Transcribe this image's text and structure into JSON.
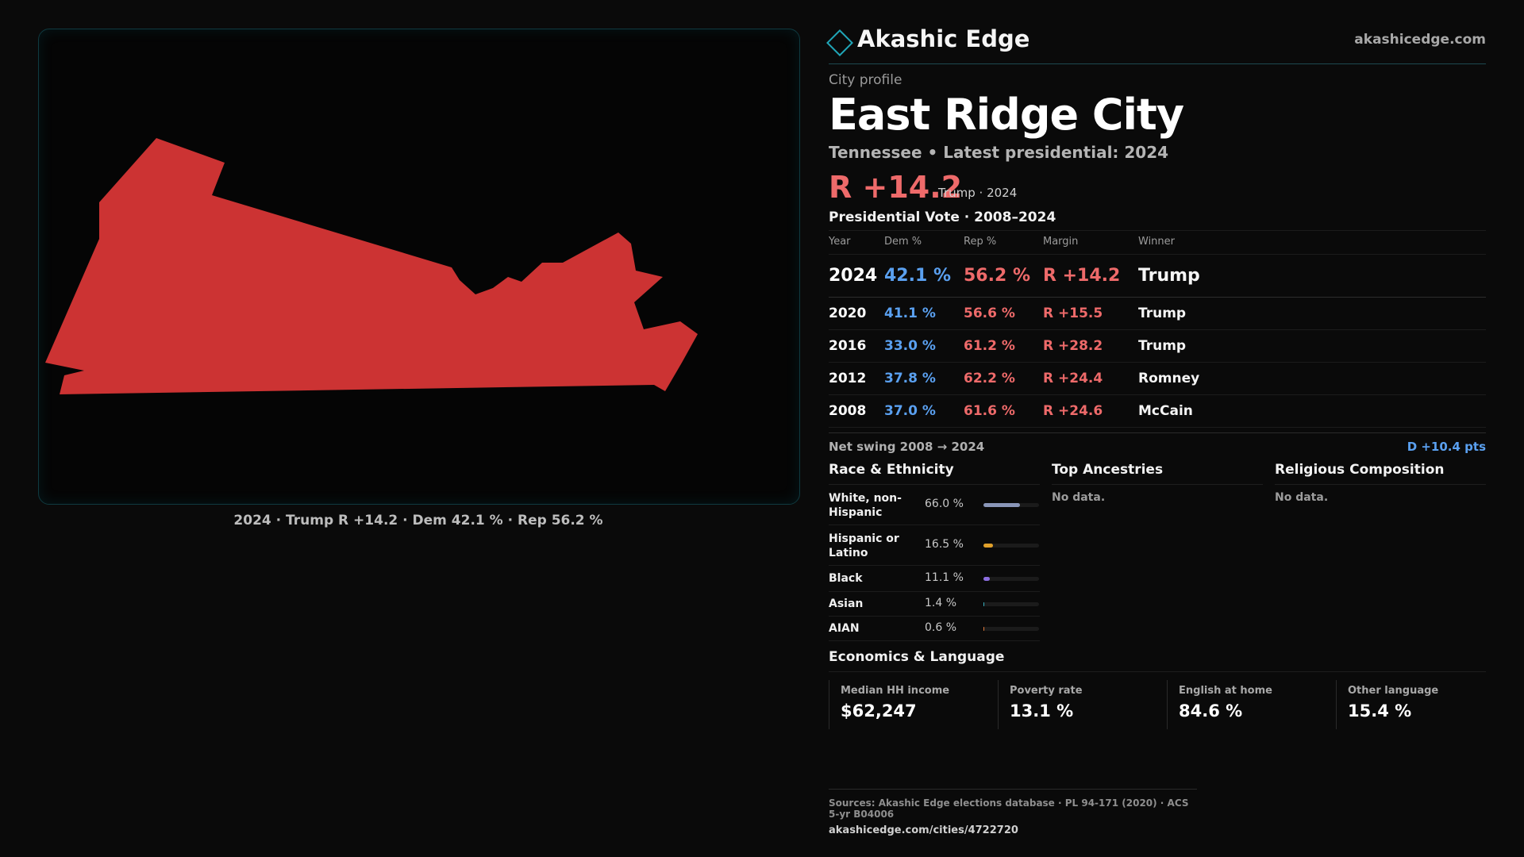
{
  "brand": {
    "name": "Akashic Edge",
    "url": "akashicedge.com"
  },
  "map": {
    "caption": "2024 · Trump R +14.2 · Dem 42.1 % · Rep 56.2 %",
    "fill_color": "#cc3333"
  },
  "profile": {
    "eyebrow": "City profile",
    "city": "East Ridge City",
    "subline": "Tennessee • Latest presidential: 2024",
    "headline_margin": "R +14.2",
    "headline_note": "Trump · 2024"
  },
  "vote_table": {
    "title": "Presidential Vote · 2008–2024",
    "headers": {
      "year": "Year",
      "dem": "Dem %",
      "rep": "Rep %",
      "margin": "Margin",
      "winner": "Winner"
    },
    "rows": [
      {
        "year": "2024",
        "dem": "42.1 %",
        "rep": "56.2 %",
        "margin": "R +14.2",
        "winner": "Trump"
      },
      {
        "year": "2020",
        "dem": "41.1 %",
        "rep": "56.6 %",
        "margin": "R +15.5",
        "winner": "Trump"
      },
      {
        "year": "2016",
        "dem": "33.0 %",
        "rep": "61.2 %",
        "margin": "R +28.2",
        "winner": "Trump"
      },
      {
        "year": "2012",
        "dem": "37.8 %",
        "rep": "62.2 %",
        "margin": "R +24.4",
        "winner": "Romney"
      },
      {
        "year": "2008",
        "dem": "37.0 %",
        "rep": "61.6 %",
        "margin": "R +24.6",
        "winner": "McCain"
      }
    ]
  },
  "swing": {
    "label": "Net swing 2008 → 2024",
    "value": "D +10.4 pts"
  },
  "race": {
    "title": "Race & Ethnicity",
    "items": [
      {
        "label": "White, non-Hispanic",
        "pct": "66.0 %",
        "share": 0.66,
        "color": "#8a96b8"
      },
      {
        "label": "Hispanic or Latino",
        "pct": "16.5 %",
        "share": 0.165,
        "color": "#e0a02a"
      },
      {
        "label": "Black",
        "pct": "11.1 %",
        "share": 0.111,
        "color": "#8c6ee0"
      },
      {
        "label": "Asian",
        "pct": "1.4 %",
        "share": 0.014,
        "color": "#38b0c0"
      },
      {
        "label": "AIAN",
        "pct": "0.6 %",
        "share": 0.006,
        "color": "#e07a3a"
      }
    ]
  },
  "ancestries": {
    "title": "Top Ancestries",
    "empty": "No data."
  },
  "religion": {
    "title": "Religious Composition",
    "empty": "No data."
  },
  "economics": {
    "title": "Economics & Language",
    "cells": [
      {
        "label": "Median HH income",
        "value": "$62,247"
      },
      {
        "label": "Poverty rate",
        "value": "13.1 %"
      },
      {
        "label": "English at home",
        "value": "84.6 %"
      },
      {
        "label": "Other language",
        "value": "15.4 %"
      }
    ]
  },
  "sources": {
    "line": "Sources: Akashic Edge elections database · PL 94-171 (2020) · ACS 5-yr B04006",
    "url": "akashicedge.com/cities/4722720"
  }
}
